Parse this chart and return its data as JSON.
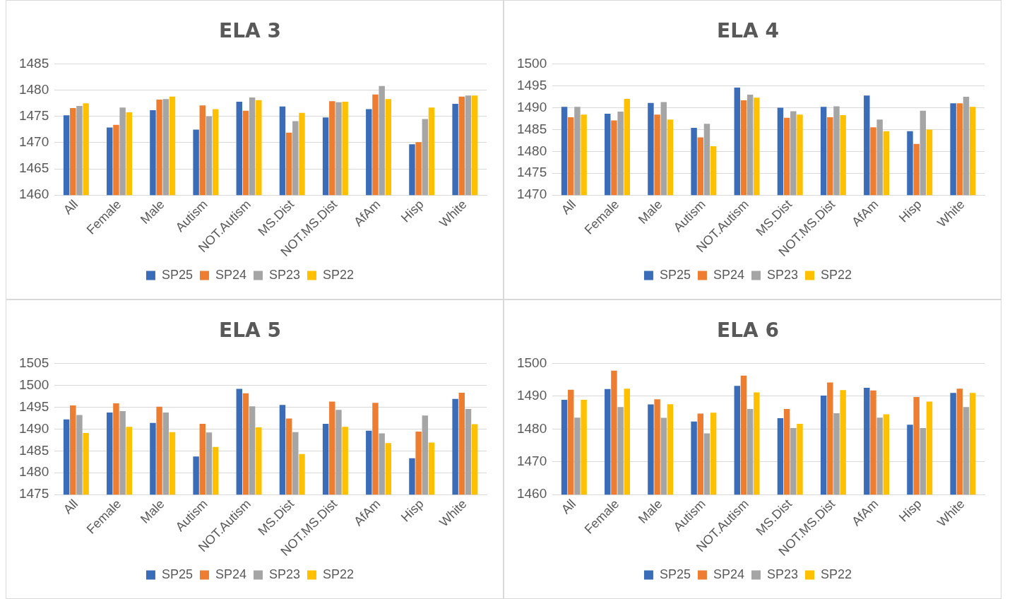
{
  "chart_data": [
    {
      "type": "bar",
      "title": "ELA 3",
      "categories": [
        "All",
        "Female",
        "Male",
        "Autism",
        "NOT.Autism",
        "MS.Dist",
        "NOT.MS.Dist",
        "AfAm",
        "Hisp",
        "White"
      ],
      "ylim": [
        1460,
        1485
      ],
      "yticks": [
        1460,
        1465,
        1470,
        1475,
        1480,
        1485
      ],
      "grid": "y",
      "legend": "bottom",
      "series": [
        {
          "name": "SP25",
          "color": "#3a6cb8",
          "values": [
            1475.2,
            1472.9,
            1476.2,
            1472.5,
            1477.8,
            1476.9,
            1474.8,
            1476.4,
            1469.7,
            1477.4
          ]
        },
        {
          "name": "SP24",
          "color": "#ed7d31",
          "values": [
            1476.6,
            1473.4,
            1478.2,
            1477.1,
            1476.1,
            1471.9,
            1477.9,
            1479.2,
            1470.1,
            1478.8
          ]
        },
        {
          "name": "SP23",
          "color": "#a5a5a5",
          "values": [
            1477.0,
            1476.7,
            1478.3,
            1475.0,
            1478.6,
            1474.1,
            1477.7,
            1480.8,
            1474.5,
            1479.0
          ]
        },
        {
          "name": "SP22",
          "color": "#ffc000",
          "values": [
            1477.5,
            1475.8,
            1478.8,
            1476.4,
            1478.1,
            1475.7,
            1477.8,
            1478.3,
            1476.7,
            1479.0
          ]
        }
      ]
    },
    {
      "type": "bar",
      "title": "ELA 4",
      "categories": [
        "All",
        "Female",
        "Male",
        "Autism",
        "NOT.Autism",
        "MS.Dist",
        "NOT.MS.Dist",
        "AfAm",
        "Hisp",
        "White"
      ],
      "ylim": [
        1470,
        1500
      ],
      "yticks": [
        1470,
        1475,
        1480,
        1485,
        1490,
        1495,
        1500
      ],
      "grid": "y",
      "legend": "bottom",
      "series": [
        {
          "name": "SP25",
          "color": "#3a6cb8",
          "values": [
            1490.2,
            1488.6,
            1491.1,
            1485.4,
            1494.6,
            1490.0,
            1490.2,
            1492.8,
            1484.6,
            1491.0
          ]
        },
        {
          "name": "SP24",
          "color": "#ed7d31",
          "values": [
            1487.8,
            1487.1,
            1488.4,
            1483.2,
            1491.7,
            1487.7,
            1487.8,
            1485.5,
            1481.7,
            1491.0
          ]
        },
        {
          "name": "SP23",
          "color": "#a5a5a5",
          "values": [
            1490.2,
            1489.1,
            1491.3,
            1486.3,
            1493.0,
            1489.2,
            1490.3,
            1487.3,
            1489.3,
            1492.5
          ]
        },
        {
          "name": "SP22",
          "color": "#ffc000",
          "values": [
            1488.4,
            1492.0,
            1487.3,
            1481.2,
            1492.3,
            1488.4,
            1488.3,
            1484.6,
            1485.0,
            1490.2
          ]
        }
      ]
    },
    {
      "type": "bar",
      "title": "ELA 5",
      "categories": [
        "All",
        "Female",
        "Male",
        "Autism",
        "NOT.Autism",
        "MS.Dist",
        "NOT.MS.Dist",
        "AfAm",
        "Hisp",
        "White"
      ],
      "ylim": [
        1475,
        1505
      ],
      "yticks": [
        1475,
        1480,
        1485,
        1490,
        1495,
        1500,
        1505
      ],
      "grid": "y",
      "legend": "bottom",
      "series": [
        {
          "name": "SP25",
          "color": "#3a6cb8",
          "values": [
            1492.2,
            1493.8,
            1491.4,
            1483.7,
            1499.2,
            1495.5,
            1491.2,
            1489.6,
            1483.3,
            1496.9
          ]
        },
        {
          "name": "SP24",
          "color": "#ed7d31",
          "values": [
            1495.4,
            1495.9,
            1495.1,
            1491.2,
            1498.2,
            1492.4,
            1496.3,
            1496.0,
            1489.4,
            1498.3
          ]
        },
        {
          "name": "SP23",
          "color": "#a5a5a5",
          "values": [
            1493.2,
            1494.1,
            1493.8,
            1489.2,
            1495.2,
            1489.3,
            1494.4,
            1489.0,
            1493.1,
            1494.6
          ]
        },
        {
          "name": "SP22",
          "color": "#ffc000",
          "values": [
            1489.1,
            1490.5,
            1489.3,
            1485.9,
            1490.4,
            1484.3,
            1490.5,
            1486.8,
            1486.9,
            1491.1
          ]
        }
      ]
    },
    {
      "type": "bar",
      "title": "ELA 6",
      "categories": [
        "All",
        "Female",
        "Male",
        "Autism",
        "NOT.Autism",
        "MS.Dist",
        "NOT.MS.Dist",
        "AfAm",
        "Hisp",
        "White"
      ],
      "ylim": [
        1460,
        1500
      ],
      "yticks": [
        1460,
        1470,
        1480,
        1490,
        1500
      ],
      "grid": "y",
      "legend": "bottom",
      "series": [
        {
          "name": "SP25",
          "color": "#3a6cb8",
          "values": [
            1488.9,
            1492.2,
            1487.5,
            1482.3,
            1493.2,
            1483.3,
            1490.2,
            1492.6,
            1481.3,
            1491.0
          ]
        },
        {
          "name": "SP24",
          "color": "#ed7d31",
          "values": [
            1492.0,
            1497.8,
            1489.1,
            1484.7,
            1496.3,
            1486.1,
            1494.2,
            1491.8,
            1489.8,
            1492.3
          ]
        },
        {
          "name": "SP23",
          "color": "#a5a5a5",
          "values": [
            1483.5,
            1486.7,
            1483.4,
            1478.7,
            1486.1,
            1480.3,
            1484.8,
            1483.5,
            1480.3,
            1486.7
          ]
        },
        {
          "name": "SP22",
          "color": "#ffc000",
          "values": [
            1488.9,
            1492.3,
            1487.6,
            1485.0,
            1491.2,
            1481.6,
            1491.9,
            1484.5,
            1488.4,
            1491.0
          ]
        }
      ]
    }
  ]
}
